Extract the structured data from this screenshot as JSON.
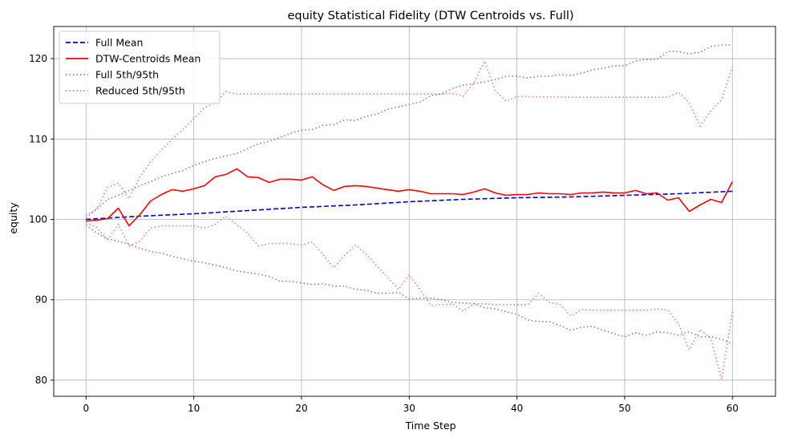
{
  "chart_data": {
    "type": "line",
    "title": "equity Statistical Fidelity (DTW Centroids vs. Full)",
    "xlabel": "Time Step",
    "ylabel": "equity",
    "xlim": [
      -3,
      64
    ],
    "ylim": [
      78,
      124
    ],
    "xticks": [
      0,
      10,
      20,
      30,
      40,
      50,
      60
    ],
    "yticks": [
      80,
      90,
      100,
      110,
      120
    ],
    "grid": true,
    "legend_position": "top-left",
    "series": [
      {
        "name": "Full Mean",
        "color": "#0000cc",
        "style": "dashed",
        "opacity": 1,
        "x": [
          0,
          5,
          10,
          15,
          20,
          25,
          30,
          35,
          40,
          45,
          50,
          55,
          60
        ],
        "values": [
          100.0,
          100.4,
          100.7,
          101.1,
          101.5,
          101.8,
          102.2,
          102.5,
          102.7,
          102.8,
          103.0,
          103.2,
          103.5
        ]
      },
      {
        "name": "DTW-Centroids Mean",
        "color": "#ff0000",
        "style": "solid",
        "opacity": 1,
        "x": [
          0,
          1,
          2,
          3,
          4,
          5,
          6,
          7,
          8,
          9,
          10,
          11,
          12,
          13,
          14,
          15,
          16,
          17,
          18,
          19,
          20,
          21,
          22,
          23,
          24,
          25,
          26,
          27,
          28,
          29,
          30,
          31,
          32,
          33,
          34,
          35,
          36,
          37,
          38,
          39,
          40,
          41,
          42,
          43,
          44,
          45,
          46,
          47,
          48,
          49,
          50,
          51,
          52,
          53,
          54,
          55,
          56,
          57,
          58,
          59,
          60
        ],
        "values": [
          99.8,
          99.9,
          100.1,
          101.4,
          99.2,
          100.6,
          102.3,
          103.1,
          103.7,
          103.5,
          103.8,
          104.2,
          105.3,
          105.6,
          106.3,
          105.3,
          105.2,
          104.6,
          105.0,
          105.0,
          104.9,
          105.3,
          104.3,
          103.6,
          104.1,
          104.2,
          104.1,
          103.9,
          103.7,
          103.5,
          103.7,
          103.5,
          103.2,
          103.2,
          103.2,
          103.1,
          103.4,
          103.8,
          103.3,
          103.0,
          103.1,
          103.1,
          103.3,
          103.2,
          103.2,
          103.1,
          103.3,
          103.3,
          103.4,
          103.3,
          103.3,
          103.6,
          103.2,
          103.3,
          102.4,
          102.7,
          101.0,
          101.8,
          102.5,
          102.1,
          104.7
        ]
      },
      {
        "name": "Full 5th/95th",
        "color": "#6a6af0",
        "style": "dotted",
        "opacity": 0.9,
        "x": [
          0,
          1,
          2,
          3,
          4,
          5,
          6,
          7,
          8,
          9,
          10,
          11,
          12,
          13,
          14,
          15,
          16,
          17,
          18,
          19,
          20,
          21,
          22,
          23,
          24,
          25,
          26,
          27,
          28,
          29,
          30,
          31,
          32,
          33,
          34,
          35,
          36,
          37,
          38,
          39,
          40,
          41,
          42,
          43,
          44,
          45,
          46,
          47,
          48,
          49,
          50,
          51,
          52,
          53,
          54,
          55,
          56,
          57,
          58,
          59,
          60
        ],
        "values": [
          100.2,
          101.3,
          102.5,
          103.0,
          103.6,
          104.2,
          104.7,
          105.3,
          105.7,
          106.1,
          106.7,
          107.2,
          107.6,
          107.9,
          108.2,
          108.8,
          109.4,
          109.7,
          110.2,
          110.7,
          111.1,
          111.2,
          111.7,
          111.8,
          112.4,
          112.3,
          112.8,
          113.1,
          113.7,
          114.0,
          114.3,
          114.6,
          115.4,
          115.6,
          116.3,
          116.7,
          116.9,
          117.1,
          117.4,
          117.8,
          117.8,
          117.6,
          117.8,
          117.8,
          118.0,
          117.9,
          118.2,
          118.6,
          118.8,
          119.1,
          119.1,
          119.7,
          119.9,
          119.9,
          120.9,
          120.9,
          120.6,
          120.8,
          121.5,
          121.7,
          121.7
        ]
      },
      {
        "name": "",
        "color": "#6a6af0",
        "style": "dotted",
        "opacity": 0.9,
        "x": [
          0,
          1,
          2,
          3,
          4,
          5,
          6,
          7,
          8,
          9,
          10,
          11,
          12,
          13,
          14,
          15,
          16,
          17,
          18,
          19,
          20,
          21,
          22,
          23,
          24,
          25,
          26,
          27,
          28,
          29,
          30,
          31,
          32,
          33,
          34,
          35,
          36,
          37,
          38,
          39,
          40,
          41,
          42,
          43,
          44,
          45,
          46,
          47,
          48,
          49,
          50,
          51,
          52,
          53,
          54,
          55,
          56,
          57,
          58,
          59,
          60
        ],
        "values": [
          99.3,
          98.3,
          97.6,
          97.3,
          96.9,
          96.4,
          96.0,
          95.8,
          95.4,
          95.1,
          94.8,
          94.6,
          94.3,
          94.0,
          93.6,
          93.4,
          93.2,
          92.9,
          92.3,
          92.3,
          92.1,
          91.9,
          92.0,
          91.7,
          91.7,
          91.3,
          91.2,
          90.8,
          90.8,
          90.9,
          90.1,
          90.2,
          90.2,
          90.0,
          89.7,
          89.6,
          89.5,
          89.0,
          88.9,
          88.5,
          88.2,
          87.5,
          87.3,
          87.3,
          86.8,
          86.2,
          86.6,
          86.7,
          86.2,
          85.8,
          85.4,
          85.9,
          85.6,
          86.0,
          85.9,
          85.6,
          86.0,
          85.4,
          85.4,
          85.1,
          84.5
        ]
      },
      {
        "name": "Reduced 5th/95th",
        "color": "#ff6b6b",
        "style": "dotted",
        "opacity": 0.9,
        "x": [
          0,
          1,
          2,
          3,
          4,
          5,
          6,
          7,
          8,
          9,
          10,
          11,
          12,
          13,
          14,
          15,
          20,
          25,
          30,
          33,
          34,
          35,
          36,
          37,
          38,
          39,
          40,
          45,
          50,
          53,
          54,
          55,
          56,
          57,
          58,
          59,
          60
        ],
        "values": [
          100.5,
          101.3,
          104.0,
          104.5,
          102.6,
          105.3,
          107.2,
          108.6,
          110.0,
          111.2,
          112.5,
          113.9,
          114.5,
          115.9,
          115.6,
          115.6,
          115.6,
          115.6,
          115.6,
          115.6,
          115.7,
          115.3,
          117.0,
          119.7,
          116.0,
          114.7,
          115.3,
          115.2,
          115.2,
          115.2,
          115.2,
          115.8,
          114.5,
          111.6,
          113.5,
          114.9,
          119.0
        ]
      },
      {
        "name": "",
        "color": "#ff6b6b",
        "style": "dotted",
        "opacity": 0.9,
        "x": [
          0,
          1,
          2,
          3,
          4,
          5,
          6,
          7,
          8,
          9,
          10,
          11,
          12,
          13,
          14,
          15,
          16,
          17,
          18,
          19,
          20,
          21,
          22,
          23,
          24,
          25,
          26,
          27,
          28,
          29,
          30,
          31,
          32,
          33,
          34,
          35,
          36,
          37,
          38,
          39,
          40,
          41,
          42,
          43,
          44,
          45,
          46,
          47,
          48,
          49,
          50,
          51,
          52,
          53,
          54,
          55,
          56,
          57,
          58,
          59,
          60
        ],
        "values": [
          99.6,
          99.0,
          97.4,
          99.4,
          96.7,
          97.3,
          98.9,
          99.2,
          99.2,
          99.2,
          99.2,
          98.9,
          99.4,
          100.4,
          99.3,
          98.3,
          96.7,
          97.0,
          97.0,
          97.0,
          96.8,
          97.2,
          95.6,
          94.0,
          95.5,
          96.8,
          95.7,
          94.2,
          92.8,
          91.3,
          93.1,
          91.3,
          89.3,
          89.4,
          89.5,
          88.6,
          89.5,
          89.5,
          89.4,
          89.4,
          89.4,
          89.4,
          90.8,
          89.7,
          89.4,
          88.0,
          88.8,
          88.7,
          88.7,
          88.7,
          88.7,
          88.7,
          88.7,
          88.9,
          88.7,
          87.0,
          83.8,
          86.3,
          85.2,
          80.1,
          88.6
        ]
      }
    ]
  }
}
